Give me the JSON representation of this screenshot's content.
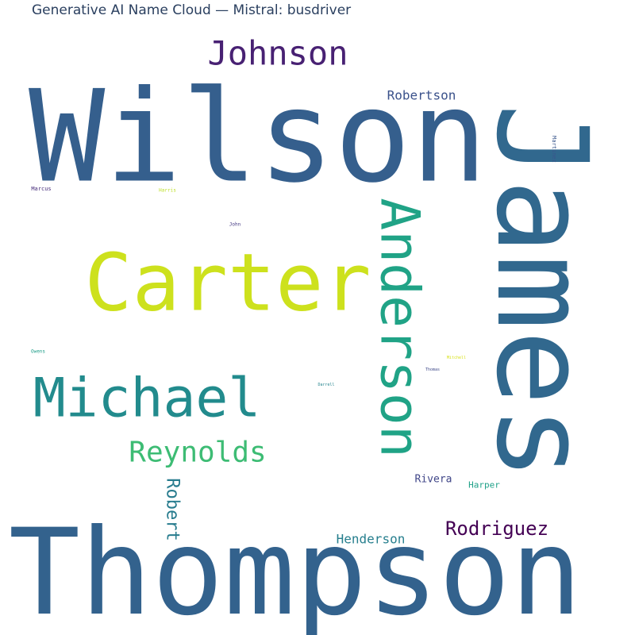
{
  "chart_data": {
    "type": "wordcloud",
    "title": "Generative AI Name Cloud — Mistral: busdriver",
    "colormap": "viridis",
    "words": [
      {
        "text": "Wilson",
        "weight": 160,
        "color": "#355f8d",
        "orientation": "horizontal"
      },
      {
        "text": "James",
        "weight": 158,
        "color": "#31688e",
        "orientation": "vertical"
      },
      {
        "text": "Thompson",
        "weight": 150,
        "color": "#33628d",
        "orientation": "horizontal"
      },
      {
        "text": "Carter",
        "weight": 100,
        "color": "#cde11d",
        "orientation": "horizontal"
      },
      {
        "text": "Anderson",
        "weight": 68,
        "color": "#20a386",
        "orientation": "vertical"
      },
      {
        "text": "Michael",
        "weight": 68,
        "color": "#228b8d",
        "orientation": "horizontal"
      },
      {
        "text": "Johnson",
        "weight": 42,
        "color": "#482173",
        "orientation": "horizontal"
      },
      {
        "text": "Reynolds",
        "weight": 36,
        "color": "#3dbc74",
        "orientation": "horizontal"
      },
      {
        "text": "Rodriguez",
        "weight": 24,
        "color": "#440154",
        "orientation": "horizontal"
      },
      {
        "text": "Robert",
        "weight": 22,
        "color": "#287c8e",
        "orientation": "vertical"
      },
      {
        "text": "Henderson",
        "weight": 16,
        "color": "#277f8e",
        "orientation": "horizontal"
      },
      {
        "text": "Robertson",
        "weight": 16,
        "color": "#3b528b",
        "orientation": "horizontal"
      },
      {
        "text": "Rivera",
        "weight": 13,
        "color": "#404688",
        "orientation": "horizontal"
      },
      {
        "text": "Harper",
        "weight": 11,
        "color": "#1fa188",
        "orientation": "horizontal"
      },
      {
        "text": "Martinez",
        "weight": 7,
        "color": "#39568c",
        "orientation": "vertical"
      },
      {
        "text": "Marcus",
        "weight": 7,
        "color": "#472d7b",
        "orientation": "horizontal"
      },
      {
        "text": "Harris",
        "weight": 6,
        "color": "#bddf26",
        "orientation": "horizontal"
      },
      {
        "text": "John",
        "weight": 6,
        "color": "#443983",
        "orientation": "horizontal"
      },
      {
        "text": "Owens",
        "weight": 6,
        "color": "#1f9e89",
        "orientation": "horizontal"
      },
      {
        "text": "Mitchell",
        "weight": 5,
        "color": "#d8e219",
        "orientation": "horizontal"
      },
      {
        "text": "Thomas",
        "weight": 5,
        "color": "#3e4989",
        "orientation": "horizontal"
      },
      {
        "text": "Darrell",
        "weight": 5,
        "color": "#25848e",
        "orientation": "horizontal"
      }
    ]
  }
}
